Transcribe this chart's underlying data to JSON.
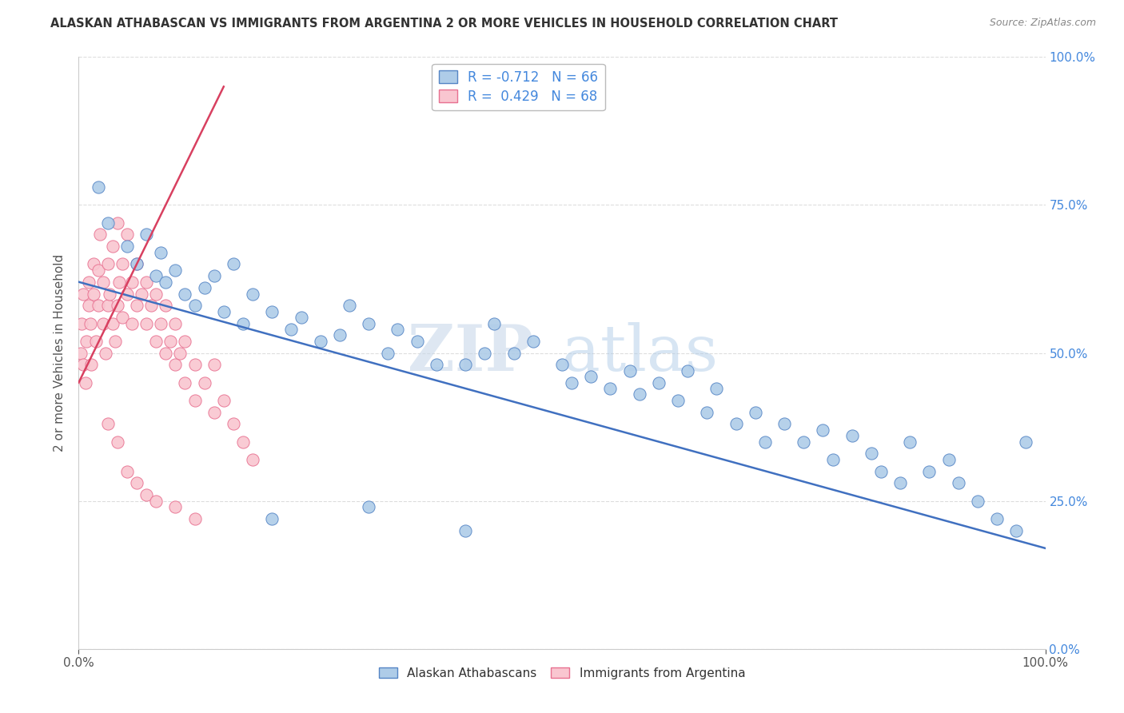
{
  "title": "ALASKAN ATHABASCAN VS IMMIGRANTS FROM ARGENTINA 2 OR MORE VEHICLES IN HOUSEHOLD CORRELATION CHART",
  "source": "Source: ZipAtlas.com",
  "ylabel": "2 or more Vehicles in Household",
  "blue_label": "Alaskan Athabascans",
  "pink_label": "Immigrants from Argentina",
  "blue_R": -0.712,
  "blue_N": 66,
  "pink_R": 0.429,
  "pink_N": 68,
  "blue_color": "#aecce8",
  "pink_color": "#f9c6d0",
  "blue_edge_color": "#5585c5",
  "pink_edge_color": "#e87090",
  "blue_line_color": "#4070c0",
  "pink_line_color": "#d84060",
  "background_color": "#ffffff",
  "watermark_zip": "ZIP",
  "watermark_atlas": "atlas",
  "grid_color": "#dddddd",
  "right_axis_color": "#4488dd",
  "title_color": "#333333",
  "source_color": "#888888",
  "blue_x": [
    2.0,
    3.0,
    5.0,
    6.0,
    7.0,
    8.0,
    8.5,
    9.0,
    10.0,
    11.0,
    12.0,
    13.0,
    14.0,
    15.0,
    16.0,
    17.0,
    18.0,
    20.0,
    22.0,
    23.0,
    25.0,
    27.0,
    28.0,
    30.0,
    32.0,
    33.0,
    35.0,
    37.0,
    40.0,
    42.0,
    43.0,
    45.0,
    47.0,
    50.0,
    51.0,
    53.0,
    55.0,
    57.0,
    58.0,
    60.0,
    62.0,
    63.0,
    65.0,
    66.0,
    68.0,
    70.0,
    71.0,
    73.0,
    75.0,
    77.0,
    78.0,
    80.0,
    82.0,
    83.0,
    85.0,
    86.0,
    88.0,
    90.0,
    91.0,
    93.0,
    95.0,
    97.0,
    98.0,
    20.0,
    30.0,
    40.0
  ],
  "blue_y": [
    78.0,
    72.0,
    68.0,
    65.0,
    70.0,
    63.0,
    67.0,
    62.0,
    64.0,
    60.0,
    58.0,
    61.0,
    63.0,
    57.0,
    65.0,
    55.0,
    60.0,
    57.0,
    54.0,
    56.0,
    52.0,
    53.0,
    58.0,
    55.0,
    50.0,
    54.0,
    52.0,
    48.0,
    48.0,
    50.0,
    55.0,
    50.0,
    52.0,
    48.0,
    45.0,
    46.0,
    44.0,
    47.0,
    43.0,
    45.0,
    42.0,
    47.0,
    40.0,
    44.0,
    38.0,
    40.0,
    35.0,
    38.0,
    35.0,
    37.0,
    32.0,
    36.0,
    33.0,
    30.0,
    28.0,
    35.0,
    30.0,
    32.0,
    28.0,
    25.0,
    22.0,
    20.0,
    35.0,
    22.0,
    24.0,
    20.0
  ],
  "pink_x": [
    0.2,
    0.3,
    0.5,
    0.5,
    0.7,
    0.8,
    1.0,
    1.0,
    1.2,
    1.3,
    1.5,
    1.5,
    1.8,
    2.0,
    2.0,
    2.2,
    2.5,
    2.5,
    2.8,
    3.0,
    3.0,
    3.2,
    3.5,
    3.5,
    3.8,
    4.0,
    4.0,
    4.2,
    4.5,
    4.5,
    5.0,
    5.0,
    5.5,
    5.5,
    6.0,
    6.0,
    6.5,
    7.0,
    7.0,
    7.5,
    8.0,
    8.0,
    8.5,
    9.0,
    9.0,
    9.5,
    10.0,
    10.0,
    10.5,
    11.0,
    11.0,
    12.0,
    12.0,
    13.0,
    14.0,
    14.0,
    15.0,
    16.0,
    17.0,
    18.0,
    3.0,
    4.0,
    5.0,
    6.0,
    7.0,
    8.0,
    10.0,
    12.0
  ],
  "pink_y": [
    50.0,
    55.0,
    48.0,
    60.0,
    45.0,
    52.0,
    58.0,
    62.0,
    55.0,
    48.0,
    60.0,
    65.0,
    52.0,
    58.0,
    64.0,
    70.0,
    55.0,
    62.0,
    50.0,
    58.0,
    65.0,
    60.0,
    55.0,
    68.0,
    52.0,
    58.0,
    72.0,
    62.0,
    56.0,
    65.0,
    60.0,
    70.0,
    55.0,
    62.0,
    58.0,
    65.0,
    60.0,
    55.0,
    62.0,
    58.0,
    52.0,
    60.0,
    55.0,
    50.0,
    58.0,
    52.0,
    48.0,
    55.0,
    50.0,
    45.0,
    52.0,
    48.0,
    42.0,
    45.0,
    40.0,
    48.0,
    42.0,
    38.0,
    35.0,
    32.0,
    38.0,
    35.0,
    30.0,
    28.0,
    26.0,
    25.0,
    24.0,
    22.0
  ],
  "blue_trend_x": [
    0,
    100
  ],
  "blue_trend_y": [
    62.0,
    17.0
  ],
  "pink_trend_x": [
    0,
    15
  ],
  "pink_trend_y": [
    45.0,
    95.0
  ],
  "xlim": [
    0,
    100
  ],
  "ylim": [
    0,
    100
  ],
  "xticks": [
    0,
    100
  ],
  "xtick_labels": [
    "0.0%",
    "100.0%"
  ],
  "yticks": [
    0,
    25,
    50,
    75,
    100
  ],
  "ytick_labels": [
    "0.0%",
    "25.0%",
    "50.0%",
    "75.0%",
    "100.0%"
  ]
}
